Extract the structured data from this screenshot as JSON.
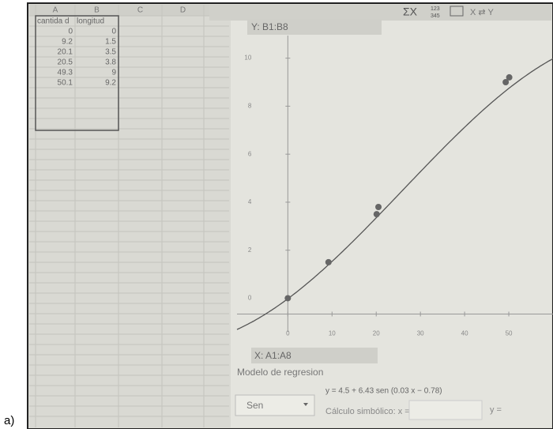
{
  "label": "a)",
  "toolbar": [
    "ΣX",
    "123",
    "345",
    "X ⇄ Y"
  ],
  "spreadsheet": {
    "columns": [
      "A",
      "B",
      "C",
      "D"
    ],
    "rows": [
      [
        "cantida d",
        "longitud"
      ],
      [
        0,
        0
      ],
      [
        9.2,
        1.5
      ],
      [
        20.1,
        3.5
      ],
      [
        20.5,
        3.8
      ],
      [
        49.3,
        9
      ],
      [
        50.1,
        9.2
      ]
    ]
  },
  "plot": {
    "ylabel": "Y: B1:B8",
    "xlabel": "X: A1:A8",
    "xlim": [
      -11.5,
      60
    ],
    "ylim": [
      -1.4,
      11.6
    ],
    "xticks": [
      0,
      10,
      20,
      30,
      40,
      50
    ],
    "yticks": [
      0,
      2,
      4,
      6,
      8,
      10
    ]
  },
  "panel": {
    "heading": "Modelo de regresion",
    "model": "Sen",
    "equation": "y = 4.5 + 6.43 sen (0.03 x − 0.78)",
    "symbolic": "Cálculo simbólico:  x =",
    "y_input": "y ="
  }
}
